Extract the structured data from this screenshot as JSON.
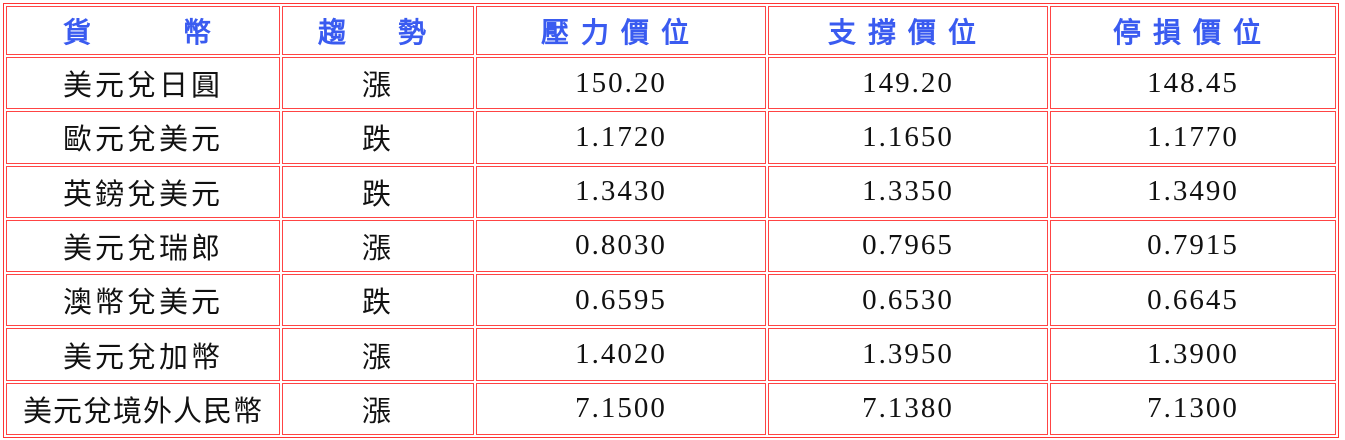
{
  "headers": [
    "貨　　幣",
    "趨　勢",
    "壓力價位",
    "支撐價位",
    "停損價位"
  ],
  "border_color": "#ff3333",
  "header_color": "#3a5bf0",
  "rows": [
    {
      "currency": "美元兌日圓",
      "trend": "漲",
      "resistance": "150.20",
      "support": "149.20",
      "stop_loss": "148.45"
    },
    {
      "currency": "歐元兌美元",
      "trend": "跌",
      "resistance": "1.1720",
      "support": "1.1650",
      "stop_loss": "1.1770"
    },
    {
      "currency": "英鎊兌美元",
      "trend": "跌",
      "resistance": "1.3430",
      "support": "1.3350",
      "stop_loss": "1.3490"
    },
    {
      "currency": "美元兌瑞郎",
      "trend": "漲",
      "resistance": "0.8030",
      "support": "0.7965",
      "stop_loss": "0.7915"
    },
    {
      "currency": "澳幣兌美元",
      "trend": "跌",
      "resistance": "0.6595",
      "support": "0.6530",
      "stop_loss": "0.6645"
    },
    {
      "currency": "美元兌加幣",
      "trend": "漲",
      "resistance": "1.4020",
      "support": "1.3950",
      "stop_loss": "1.3900"
    },
    {
      "currency": "美元兌境外人民幣",
      "trend": "漲",
      "resistance": "7.1500",
      "support": "7.1380",
      "stop_loss": "7.1300"
    }
  ]
}
